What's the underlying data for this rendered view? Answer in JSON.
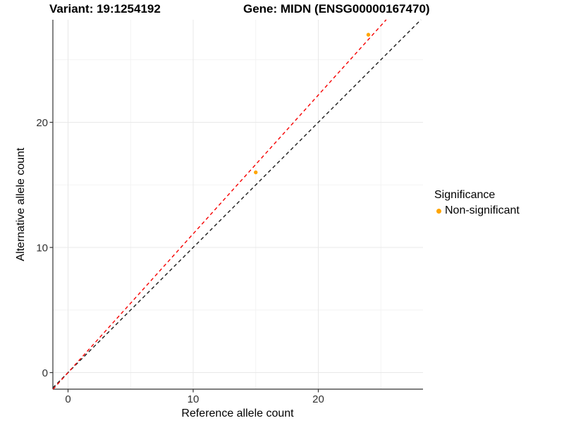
{
  "titles": {
    "variant": "Variant: 19:1254192",
    "gene": "Gene: MIDN (ENSG00000167470)"
  },
  "chart_data": {
    "type": "scatter",
    "xlabel": "Reference allele count",
    "ylabel": "Alternative allele count",
    "xlim": [
      -1.2,
      28.4
    ],
    "ylim": [
      -1.3,
      28.2
    ],
    "x_ticks": [
      0,
      10,
      20
    ],
    "y_ticks": [
      0,
      10,
      20
    ],
    "x_minor_ticks": [
      5,
      15,
      25
    ],
    "y_minor_ticks": [
      5,
      15,
      25
    ],
    "grid": true,
    "series": [
      {
        "name": "Non-significant",
        "color": "#FFA500",
        "points": [
          {
            "x": 15,
            "y": 16
          },
          {
            "x": 24,
            "y": 27
          }
        ]
      }
    ],
    "lines": [
      {
        "name": "identity-line",
        "slope": 1.0,
        "intercept": 0,
        "color": "#1a1a1a",
        "style": "dashed"
      },
      {
        "name": "fit-line",
        "slope": 1.109,
        "intercept": 0,
        "color": "#f60000",
        "style": "dashed"
      }
    ],
    "legend": {
      "title": "Significance",
      "position": "right",
      "entries": [
        {
          "label": "Non-significant",
          "color": "#FFA500"
        }
      ]
    },
    "colors": {
      "grid_major": "#e8e8e8",
      "grid_minor": "#f3f3f3",
      "axis_line": "#333333",
      "tick_text": "#303030"
    }
  }
}
